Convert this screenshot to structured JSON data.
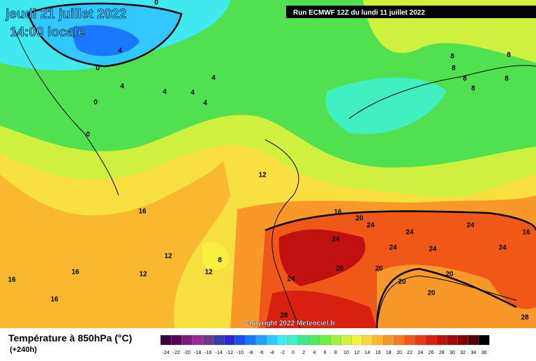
{
  "header": {
    "date": "jeudi 21 juillet 2022",
    "time": "14:00 locale",
    "run": "Run ECMWF 12Z du lundi 11 juillet 2022"
  },
  "copyright": "Copyright 2022 Meteociel.fr",
  "legend": {
    "title": "Température à 850hPa (°C)",
    "lead": "(+240h)",
    "ticks": [
      -24,
      -22,
      -20,
      -18,
      -16,
      -14,
      -12,
      -10,
      -8,
      -6,
      -4,
      -2,
      0,
      2,
      4,
      6,
      8,
      10,
      12,
      14,
      16,
      18,
      20,
      22,
      24,
      26,
      28,
      30,
      32,
      34,
      36
    ],
    "colors": [
      "#3a003a",
      "#5a005a",
      "#7a1a7a",
      "#9a2a9a",
      "#6a3a8a",
      "#3a3aaa",
      "#2a2ad0",
      "#1a50f0",
      "#1a78ff",
      "#20a0ff",
      "#30c8ff",
      "#40e8f0",
      "#40f0c0",
      "#40e890",
      "#50e860",
      "#70f040",
      "#a0f040",
      "#d0f040",
      "#f8f040",
      "#f8d838",
      "#f8b830",
      "#f89828",
      "#f87820",
      "#f05818",
      "#e83818",
      "#d82010",
      "#c01010",
      "#a00808",
      "#800000",
      "#500000",
      "#000000"
    ]
  },
  "contour_labels": [
    0,
    0,
    0,
    0,
    4,
    4,
    4,
    4,
    4,
    4,
    8,
    8,
    8,
    8,
    8,
    8,
    8,
    12,
    12,
    12,
    12,
    16,
    16,
    16,
    16,
    16,
    16,
    20,
    20,
    20,
    20,
    20,
    20,
    24,
    24,
    24,
    24,
    24,
    24,
    24,
    24,
    28,
    28
  ]
}
